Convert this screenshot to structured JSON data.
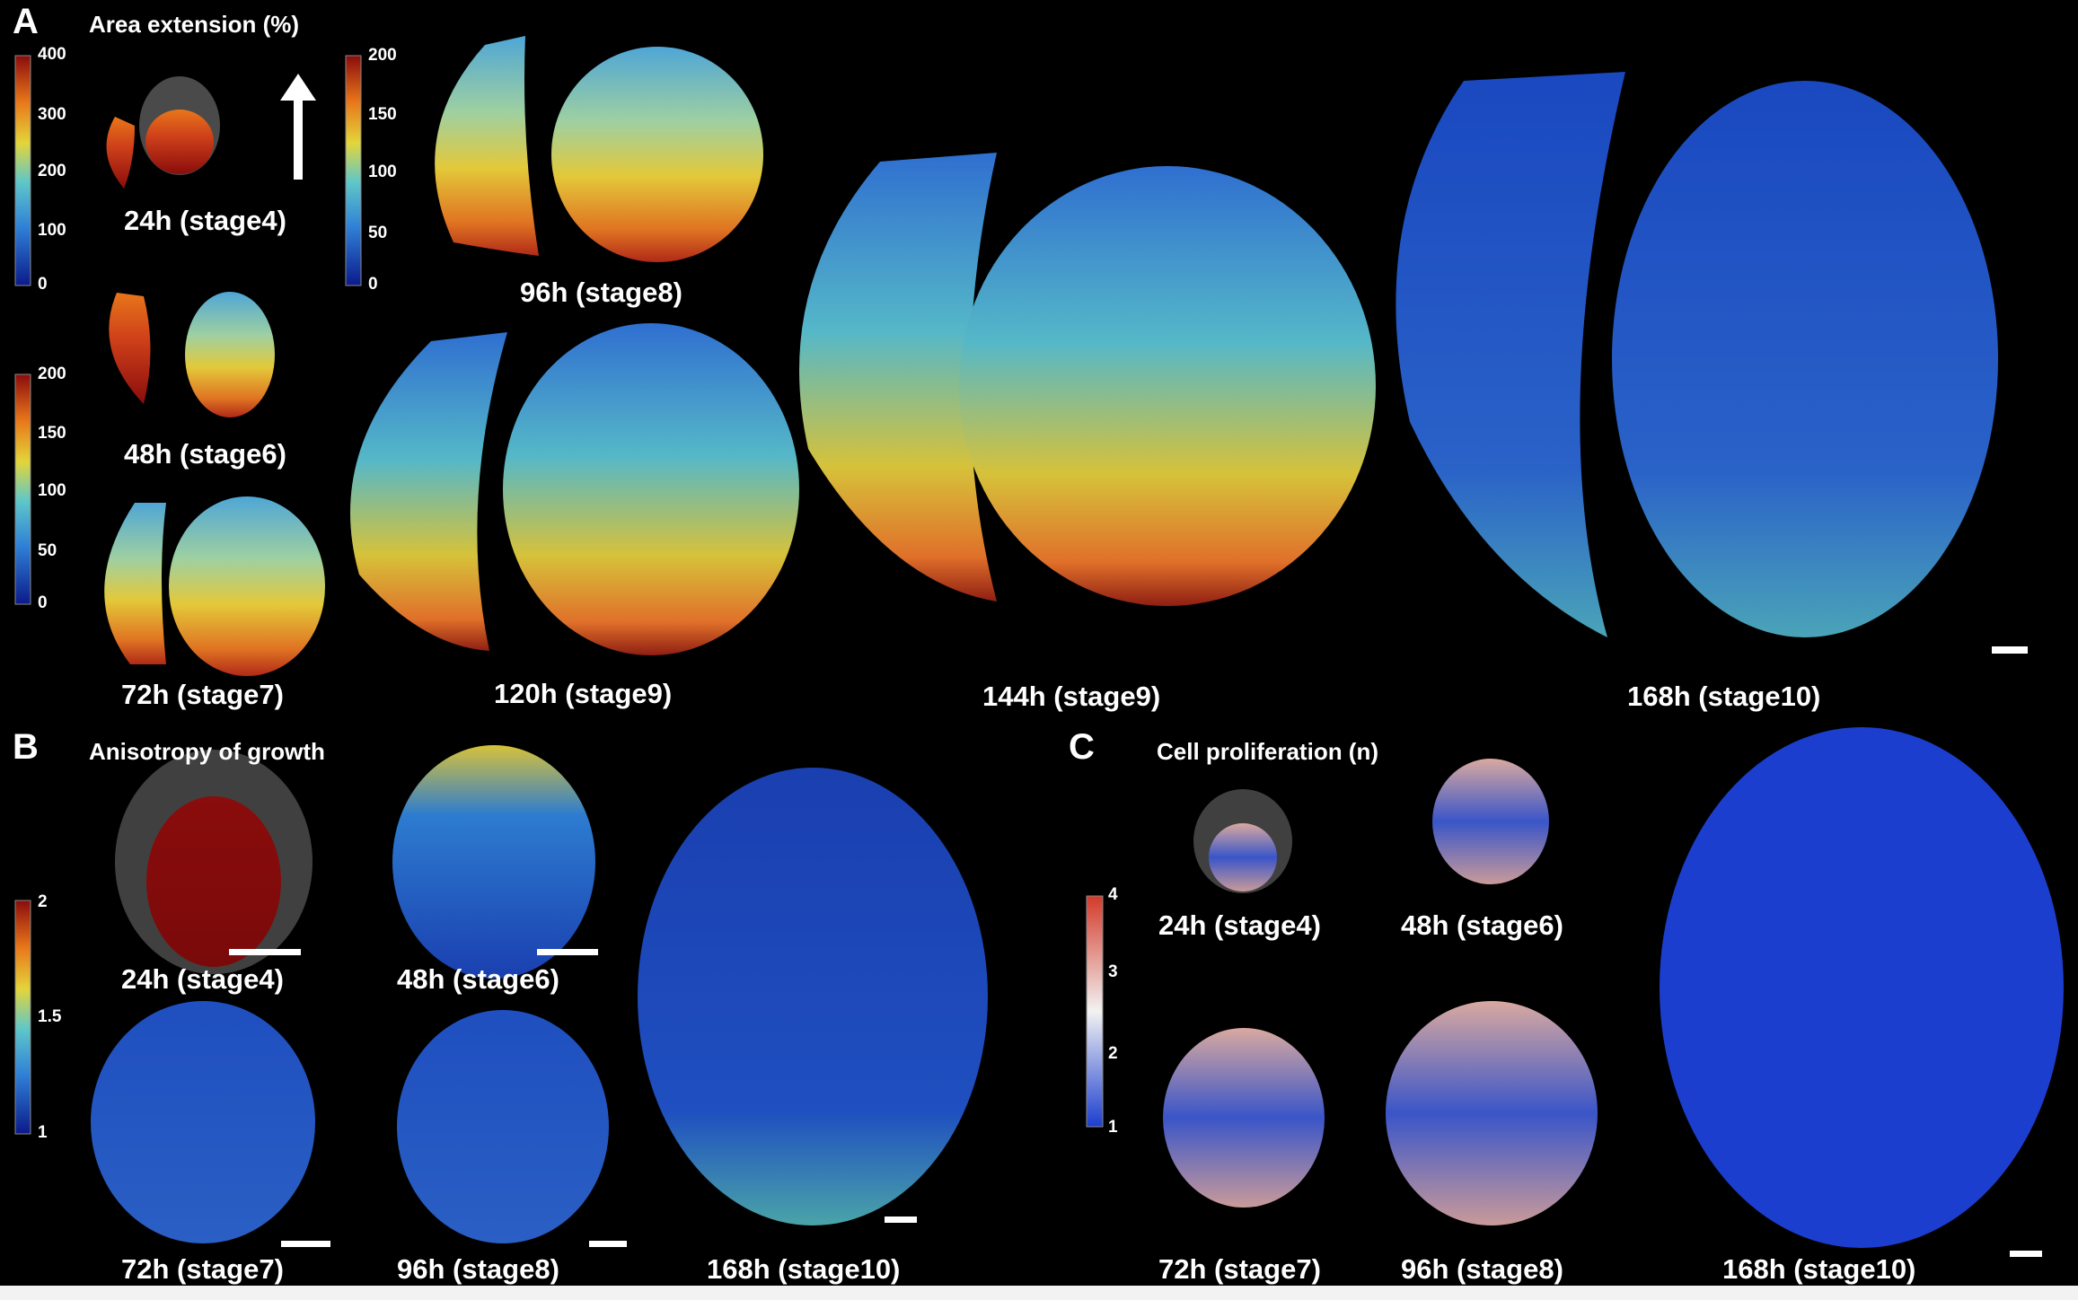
{
  "panelA": {
    "letter": "A",
    "title": "Area extension (%)",
    "colorbar1_ticks": [
      "400",
      "300",
      "200",
      "100",
      "0"
    ],
    "colorbar2_ticks": [
      "200",
      "150",
      "100",
      "50",
      "0"
    ],
    "colorbar3_ticks": [
      "200",
      "150",
      "100",
      "50",
      "0"
    ],
    "stages": [
      "24h (stage4)",
      "48h (stage6)",
      "72h (stage7)",
      "96h (stage8)",
      "120h (stage9)",
      "144h (stage9)",
      "168h (stage10)"
    ]
  },
  "panelB": {
    "letter": "B",
    "title": "Anisotropy of growth",
    "colorbar_ticks": [
      "2",
      "1.5",
      "1"
    ],
    "stages": [
      "24h (stage4)",
      "48h (stage6)",
      "72h (stage7)",
      "96h (stage8)",
      "168h (stage10)"
    ]
  },
  "panelC": {
    "letter": "C",
    "title": "Cell proliferation (n)",
    "colorbar_ticks": [
      "4",
      "3",
      "2",
      "1"
    ],
    "stages": [
      "24h (stage4)",
      "48h (stage6)",
      "72h (stage7)",
      "96h (stage8)",
      "168h (stage10)"
    ]
  },
  "colors": {
    "jet_red": "#a50f15",
    "jet_orange": "#e8761a",
    "jet_yellow": "#e3c93a",
    "jet_cyan": "#55b8c8",
    "jet_blue": "#1f55c4",
    "jet_dark": "#13287a",
    "rwb_red": "#d43a2a",
    "rwb_white": "#f2f2f2",
    "rwb_blue": "#1c3ecf",
    "shell_gray": "#3a3a3a"
  }
}
